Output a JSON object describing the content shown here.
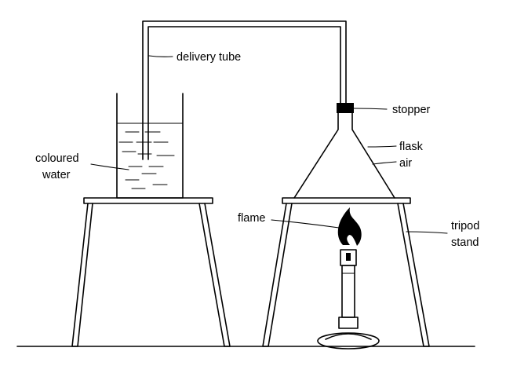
{
  "labels": {
    "delivery_tube": "delivery tube",
    "stopper": "stopper",
    "flask": "flask",
    "air": "air",
    "coloured": "coloured",
    "water": "water",
    "flame": "flame",
    "tripod": "tripod",
    "stand": "stand"
  },
  "colors": {
    "line": "#000000",
    "stopper": "#000000",
    "background": "#ffffff"
  }
}
